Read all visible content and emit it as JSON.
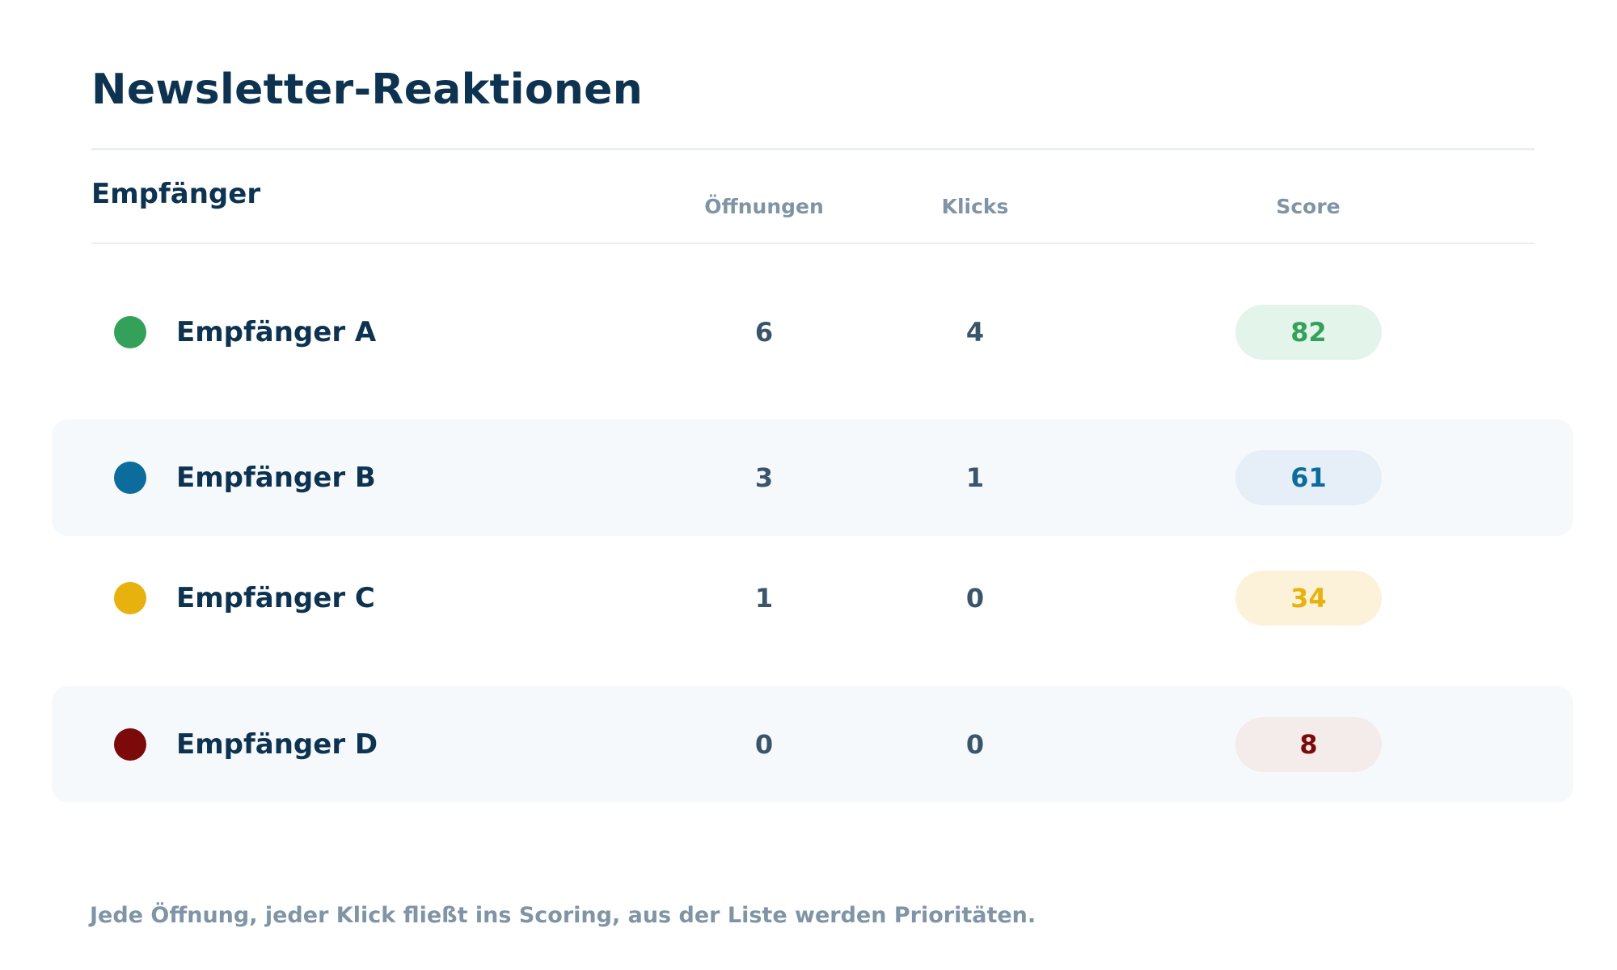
{
  "title": "Newsletter-Reaktionen",
  "table": {
    "headers": {
      "recipient": "Empfänger",
      "opens": "Öffnungen",
      "clicks": "Klicks",
      "score": "Score"
    },
    "rows": [
      {
        "name": "Empfänger A",
        "opens": "6",
        "clicks": "4",
        "score": "82",
        "color": "#34a15a",
        "score_bg": "#e3f4ea",
        "score_color": "#34a15a"
      },
      {
        "name": "Empfänger B",
        "opens": "3",
        "clicks": "1",
        "score": "61",
        "color": "#0c6c9c",
        "score_bg": "#e6eff7",
        "score_color": "#0c6c9c"
      },
      {
        "name": "Empfänger C",
        "opens": "1",
        "clicks": "0",
        "score": "34",
        "color": "#e8b20e",
        "score_bg": "#fcf2d9",
        "score_color": "#e8b20e"
      },
      {
        "name": "Empfänger D",
        "opens": "0",
        "clicks": "0",
        "score": "8",
        "color": "#7c0a0a",
        "score_bg": "#f4ebeb",
        "score_color": "#7c0a0a"
      }
    ]
  },
  "footer": "Jede Öffnung, jeder Klick fließt ins Scoring, aus der Liste werden Prioritäten."
}
